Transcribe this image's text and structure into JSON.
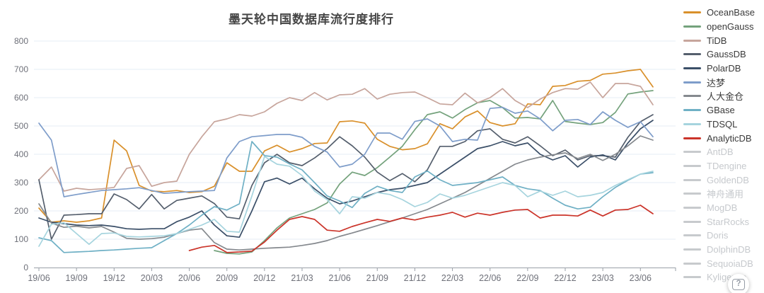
{
  "chart": {
    "title": "墨天轮中国数据库流行度排行"
  },
  "help": {
    "label": "?"
  },
  "style": {
    "axis_label_color": "#6e7079",
    "grid_line_color": "#e6ecf5",
    "axis_line_color": "#9aa0a8",
    "disabled_legend_color": "#c7cacd"
  },
  "chart_data": {
    "type": "line",
    "title": "墨天轮中国数据库流行度排行",
    "x": [
      "19/06",
      "19/07",
      "19/08",
      "19/09",
      "19/10",
      "19/11",
      "19/12",
      "20/01",
      "20/02",
      "20/03",
      "20/04",
      "20/05",
      "20/06",
      "20/07",
      "20/08",
      "20/09",
      "20/10",
      "20/11",
      "20/12",
      "21/01",
      "21/02",
      "21/03",
      "21/04",
      "21/05",
      "21/06",
      "21/07",
      "21/08",
      "21/09",
      "21/10",
      "21/11",
      "21/12",
      "22/01",
      "22/02",
      "22/03",
      "22/04",
      "22/05",
      "22/06",
      "22/07",
      "22/08",
      "22/09",
      "22/10",
      "22/11",
      "22/12",
      "23/01",
      "23/02",
      "23/03",
      "23/04",
      "23/05",
      "23/06",
      "23/07"
    ],
    "x_tick_every": 3,
    "x_tick_labels": [
      "19/06",
      "19/09",
      "19/12",
      "20/03",
      "20/06",
      "20/09",
      "20/12",
      "21/03",
      "21/06",
      "21/09",
      "21/12",
      "22/03",
      "22/06",
      "22/09",
      "22/12",
      "23/03",
      "23/06"
    ],
    "ylim": [
      0,
      800
    ],
    "y_ticks": [
      0,
      100,
      200,
      300,
      400,
      500,
      600,
      700,
      800
    ],
    "grid": true,
    "legend_position": "right",
    "series": [
      {
        "name": "OceanBase",
        "color": "#d9902b",
        "values": [
          210,
          160,
          165,
          160,
          165,
          175,
          450,
          412,
          290,
          270,
          268,
          272,
          265,
          268,
          287,
          370,
          340,
          340,
          412,
          432,
          408,
          420,
          438,
          440,
          515,
          518,
          510,
          453,
          428,
          416,
          420,
          437,
          508,
          490,
          532,
          553,
          512,
          500,
          508,
          578,
          575,
          640,
          643,
          658,
          661,
          683,
          687,
          695,
          700,
          638
        ]
      },
      {
        "name": "openGauss",
        "color": "#74a27c",
        "values": [
          null,
          null,
          null,
          null,
          null,
          null,
          null,
          null,
          null,
          null,
          null,
          null,
          null,
          null,
          60,
          50,
          48,
          55,
          95,
          140,
          175,
          190,
          205,
          228,
          295,
          337,
          325,
          353,
          390,
          428,
          487,
          540,
          550,
          528,
          558,
          582,
          590,
          565,
          528,
          530,
          525,
          590,
          516,
          510,
          505,
          512,
          548,
          613,
          620,
          625
        ]
      },
      {
        "name": "TiDB",
        "color": "#c7a59c",
        "values": [
          310,
          355,
          270,
          280,
          275,
          278,
          283,
          350,
          360,
          287,
          300,
          305,
          400,
          462,
          515,
          525,
          540,
          535,
          550,
          580,
          600,
          590,
          618,
          592,
          610,
          612,
          632,
          595,
          612,
          618,
          620,
          600,
          578,
          575,
          616,
          582,
          600,
          632,
          590,
          565,
          595,
          618,
          632,
          630,
          655,
          600,
          650,
          650,
          640,
          575
        ]
      },
      {
        "name": "GaussDB",
        "color": "#555f6d",
        "values": [
          310,
          100,
          185,
          187,
          190,
          190,
          260,
          240,
          207,
          258,
          207,
          237,
          245,
          253,
          226,
          178,
          172,
          290,
          370,
          400,
          370,
          360,
          387,
          420,
          462,
          430,
          390,
          337,
          307,
          332,
          303,
          345,
          428,
          428,
          445,
          483,
          490,
          453,
          440,
          462,
          430,
          395,
          415,
          380,
          395,
          395,
          390,
          460,
          515,
          540
        ]
      },
      {
        "name": "PolarDB",
        "color": "#3b4f68",
        "values": [
          175,
          160,
          155,
          150,
          148,
          150,
          145,
          137,
          135,
          137,
          137,
          162,
          178,
          200,
          150,
          112,
          107,
          200,
          303,
          316,
          295,
          316,
          278,
          245,
          225,
          235,
          250,
          265,
          275,
          280,
          290,
          300,
          330,
          360,
          390,
          420,
          430,
          445,
          430,
          440,
          400,
          380,
          395,
          355,
          390,
          398,
          380,
          440,
          490,
          520
        ]
      },
      {
        "name": "达梦",
        "color": "#7e9dca",
        "values": [
          510,
          450,
          250,
          258,
          265,
          272,
          275,
          278,
          282,
          272,
          262,
          265,
          268,
          270,
          272,
          387,
          445,
          462,
          466,
          470,
          470,
          460,
          428,
          408,
          355,
          365,
          400,
          475,
          475,
          453,
          516,
          525,
          500,
          445,
          453,
          450,
          562,
          566,
          545,
          553,
          525,
          483,
          520,
          523,
          505,
          550,
          520,
          495,
          515,
          462
        ]
      },
      {
        "name": "人大金仓",
        "color": "#85898e",
        "values": [
          225,
          157,
          142,
          146,
          140,
          145,
          125,
          103,
          100,
          102,
          107,
          120,
          132,
          137,
          88,
          65,
          62,
          65,
          68,
          70,
          72,
          78,
          85,
          95,
          110,
          122,
          135,
          148,
          162,
          175,
          190,
          205,
          225,
          245,
          265,
          290,
          315,
          340,
          365,
          380,
          390,
          398,
          405,
          385,
          400,
          378,
          400,
          430,
          465,
          450
        ]
      },
      {
        "name": "GBase",
        "color": "#6fb0c5",
        "values": [
          105,
          95,
          53,
          55,
          57,
          60,
          62,
          65,
          68,
          70,
          95,
          120,
          150,
          185,
          215,
          203,
          225,
          445,
          395,
          390,
          366,
          345,
          300,
          253,
          235,
          212,
          262,
          287,
          272,
          265,
          320,
          341,
          310,
          290,
          295,
          300,
          310,
          320,
          290,
          278,
          272,
          245,
          220,
          207,
          213,
          250,
          283,
          308,
          330,
          335
        ]
      },
      {
        "name": "TDSQL",
        "color": "#a6d4de",
        "values": [
          75,
          153,
          158,
          120,
          82,
          120,
          122,
          110,
          108,
          110,
          112,
          120,
          135,
          150,
          170,
          128,
          125,
          253,
          392,
          365,
          358,
          325,
          270,
          240,
          190,
          250,
          245,
          265,
          258,
          240,
          215,
          230,
          260,
          245,
          255,
          270,
          285,
          300,
          290,
          250,
          270,
          255,
          270,
          250,
          255,
          265,
          290,
          310,
          330,
          340
        ]
      },
      {
        "name": "AnalyticDB",
        "color": "#cb342a",
        "values": [
          null,
          null,
          null,
          null,
          null,
          null,
          null,
          null,
          null,
          null,
          null,
          null,
          60,
          72,
          78,
          53,
          55,
          58,
          90,
          132,
          170,
          180,
          170,
          132,
          128,
          145,
          158,
          170,
          163,
          175,
          168,
          178,
          185,
          195,
          178,
          192,
          185,
          195,
          203,
          205,
          175,
          185,
          185,
          182,
          203,
          182,
          203,
          205,
          220,
          190
        ]
      }
    ]
  },
  "legend": {
    "items": [
      {
        "label": "OceanBase",
        "color": "#d9902b",
        "active": true
      },
      {
        "label": "openGauss",
        "color": "#74a27c",
        "active": true
      },
      {
        "label": "TiDB",
        "color": "#c7a59c",
        "active": true
      },
      {
        "label": "GaussDB",
        "color": "#555f6d",
        "active": true
      },
      {
        "label": "PolarDB",
        "color": "#3b4f68",
        "active": true
      },
      {
        "label": "达梦",
        "color": "#7e9dca",
        "active": true
      },
      {
        "label": "人大金仓",
        "color": "#85898e",
        "active": true
      },
      {
        "label": "GBase",
        "color": "#6fb0c5",
        "active": true
      },
      {
        "label": "TDSQL",
        "color": "#a6d4de",
        "active": true
      },
      {
        "label": "AnalyticDB",
        "color": "#cb342a",
        "active": true
      },
      {
        "label": "AntDB",
        "color": "#c7cacd",
        "active": false
      },
      {
        "label": "TDengine",
        "color": "#c7cacd",
        "active": false
      },
      {
        "label": "GoldenDB",
        "color": "#c7cacd",
        "active": false
      },
      {
        "label": "神舟通用",
        "color": "#c7cacd",
        "active": false
      },
      {
        "label": "MogDB",
        "color": "#c7cacd",
        "active": false
      },
      {
        "label": "StarRocks",
        "color": "#c7cacd",
        "active": false
      },
      {
        "label": "Doris",
        "color": "#c7cacd",
        "active": false
      },
      {
        "label": "DolphinDB",
        "color": "#c7cacd",
        "active": false
      },
      {
        "label": "SequoiaDB",
        "color": "#c7cacd",
        "active": false
      },
      {
        "label": "Kyligence",
        "color": "#c7cacd",
        "active": false
      }
    ]
  }
}
